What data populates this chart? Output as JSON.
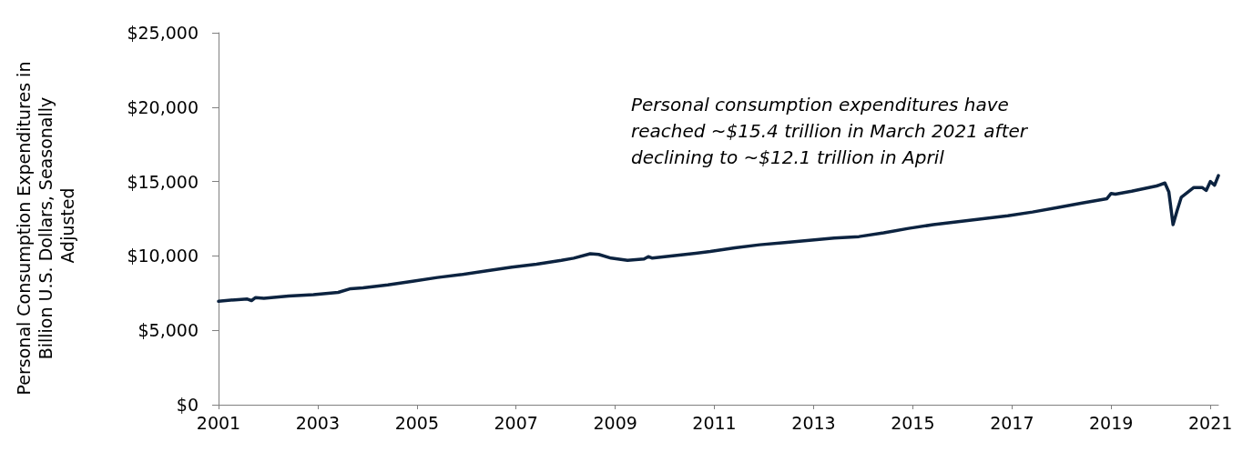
{
  "chart_data": {
    "type": "line",
    "ylabel": "Personal Consumption Expenditures in Billion U.S. Dollars, Seasonally Adjusted",
    "annotations": [
      "Personal consumption expenditures have reached ~$15.4 trillion in March 2021 after declining to ~$12.1 trillion in April"
    ],
    "x": [
      "2001-01",
      "2001-05",
      "2001-08",
      "2001-09",
      "2001-10",
      "2001-12",
      "2002-06",
      "2002-12",
      "2003-06",
      "2003-09",
      "2003-12",
      "2004-06",
      "2004-12",
      "2005-06",
      "2005-12",
      "2006-06",
      "2006-12",
      "2007-06",
      "2007-12",
      "2008-03",
      "2008-07",
      "2008-09",
      "2008-12",
      "2009-04",
      "2009-08",
      "2009-09",
      "2009-10",
      "2010-06",
      "2010-12",
      "2011-06",
      "2011-12",
      "2012-06",
      "2012-12",
      "2013-06",
      "2013-12",
      "2014-06",
      "2014-12",
      "2015-06",
      "2015-12",
      "2016-06",
      "2016-12",
      "2017-06",
      "2017-12",
      "2018-06",
      "2018-12",
      "2019-01",
      "2019-02",
      "2019-06",
      "2019-12",
      "2020-02",
      "2020-03",
      "2020-04",
      "2020-05",
      "2020-06",
      "2020-09",
      "2020-11",
      "2020-12",
      "2021-01",
      "2021-02",
      "2021-03"
    ],
    "series": [
      {
        "color": "#0c2340",
        "values": [
          6950,
          7050,
          7100,
          7000,
          7200,
          7150,
          7300,
          7400,
          7550,
          7800,
          7850,
          8050,
          8300,
          8550,
          8750,
          9000,
          9250,
          9450,
          9700,
          9850,
          10150,
          10100,
          9850,
          9700,
          9800,
          9950,
          9850,
          10100,
          10300,
          10550,
          10750,
          10900,
          11050,
          11200,
          11300,
          11550,
          11850,
          12100,
          12300,
          12500,
          12700,
          12950,
          13250,
          13550,
          13850,
          14200,
          14150,
          14350,
          14700,
          14900,
          14300,
          12100,
          13050,
          13950,
          14600,
          14600,
          14400,
          15000,
          14750,
          15400
        ]
      }
    ],
    "xlim": [
      "2001-01",
      "2021-03"
    ],
    "xticks": [
      "2001",
      "2003",
      "2005",
      "2007",
      "2009",
      "2011",
      "2013",
      "2015",
      "2017",
      "2019",
      "2021"
    ],
    "ylim": [
      0,
      25000
    ],
    "yticks": [
      {
        "value": 0,
        "label": "$0"
      },
      {
        "value": 5000,
        "label": "$5,000"
      },
      {
        "value": 10000,
        "label": "$10,000"
      },
      {
        "value": 15000,
        "label": "$15,000"
      },
      {
        "value": 20000,
        "label": "$20,000"
      },
      {
        "value": 25000,
        "label": "$25,000"
      }
    ],
    "grid": false,
    "marker": "none",
    "line_style": "solid"
  }
}
